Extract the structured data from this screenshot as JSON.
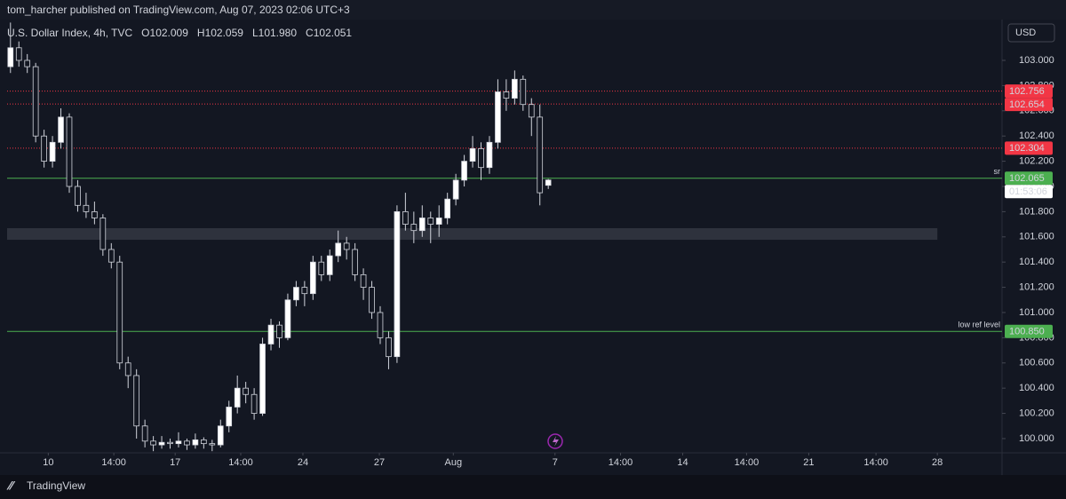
{
  "header": "tom_harcher published on TradingView.com, Aug 07, 2023 02:06 UTC+3",
  "footer": "TradingView",
  "chart_data": {
    "type": "candlestick",
    "legend": {
      "symbol": "U.S. Dollar Index, 4h, TVC",
      "ohlc": [
        {
          "key": "O",
          "label": "102.009"
        },
        {
          "key": "H",
          "label": "102.059"
        },
        {
          "key": "L",
          "label": "101.980"
        },
        {
          "key": "C",
          "label": "102.051"
        }
      ]
    },
    "currency": "USD",
    "up_color": "#ffffff",
    "down_color": "#131722",
    "wick_color": "#d1d4dc",
    "ohlc": [
      [
        102.95,
        103.3,
        102.9,
        103.1
      ],
      [
        103.1,
        103.15,
        102.95,
        103.0
      ],
      [
        103.0,
        103.05,
        102.9,
        102.95
      ],
      [
        102.95,
        102.98,
        102.35,
        102.4
      ],
      [
        102.4,
        102.45,
        102.15,
        102.2
      ],
      [
        102.2,
        102.4,
        102.15,
        102.35
      ],
      [
        102.35,
        102.62,
        102.3,
        102.55
      ],
      [
        102.55,
        102.58,
        101.95,
        102.0
      ],
      [
        102.0,
        102.05,
        101.8,
        101.85
      ],
      [
        101.85,
        101.95,
        101.75,
        101.8
      ],
      [
        101.8,
        101.88,
        101.7,
        101.75
      ],
      [
        101.75,
        101.78,
        101.45,
        101.5
      ],
      [
        101.5,
        101.55,
        101.35,
        101.4
      ],
      [
        101.4,
        101.45,
        100.55,
        100.6
      ],
      [
        100.6,
        100.65,
        100.4,
        100.5
      ],
      [
        100.5,
        100.55,
        100.0,
        100.1
      ],
      [
        100.1,
        100.15,
        99.93,
        99.98
      ],
      [
        99.98,
        100.02,
        99.9,
        99.95
      ],
      [
        99.95,
        100.02,
        99.92,
        99.97
      ],
      [
        99.97,
        100.0,
        99.92,
        99.96
      ],
      [
        99.96,
        100.05,
        99.93,
        99.98
      ],
      [
        99.98,
        100.0,
        99.91,
        99.95
      ],
      [
        99.95,
        100.04,
        99.92,
        99.99
      ],
      [
        99.99,
        100.01,
        99.92,
        99.96
      ],
      [
        99.96,
        99.99,
        99.9,
        99.95
      ],
      [
        99.95,
        100.15,
        99.93,
        100.1
      ],
      [
        100.1,
        100.3,
        100.05,
        100.25
      ],
      [
        100.25,
        100.5,
        100.2,
        100.4
      ],
      [
        100.4,
        100.45,
        100.28,
        100.35
      ],
      [
        100.35,
        100.4,
        100.15,
        100.2
      ],
      [
        100.2,
        100.8,
        100.18,
        100.75
      ],
      [
        100.75,
        100.95,
        100.7,
        100.9
      ],
      [
        100.9,
        100.93,
        100.72,
        100.8
      ],
      [
        100.8,
        101.15,
        100.78,
        101.1
      ],
      [
        101.1,
        101.25,
        101.05,
        101.2
      ],
      [
        101.2,
        101.25,
        101.05,
        101.15
      ],
      [
        101.15,
        101.45,
        101.1,
        101.4
      ],
      [
        101.4,
        101.45,
        101.25,
        101.3
      ],
      [
        101.3,
        101.5,
        101.25,
        101.45
      ],
      [
        101.45,
        101.65,
        101.4,
        101.55
      ],
      [
        101.55,
        101.6,
        101.42,
        101.5
      ],
      [
        101.5,
        101.55,
        101.25,
        101.3
      ],
      [
        101.3,
        101.35,
        101.1,
        101.2
      ],
      [
        101.2,
        101.25,
        100.95,
        101.0
      ],
      [
        101.0,
        101.05,
        100.75,
        100.8
      ],
      [
        100.8,
        100.85,
        100.55,
        100.65
      ],
      [
        100.65,
        101.85,
        100.6,
        101.8
      ],
      [
        101.8,
        101.95,
        101.65,
        101.7
      ],
      [
        101.7,
        101.8,
        101.55,
        101.65
      ],
      [
        101.65,
        101.85,
        101.6,
        101.75
      ],
      [
        101.75,
        101.8,
        101.55,
        101.7
      ],
      [
        101.7,
        101.85,
        101.6,
        101.75
      ],
      [
        101.75,
        101.95,
        101.7,
        101.9
      ],
      [
        101.9,
        102.1,
        101.85,
        102.05
      ],
      [
        102.05,
        102.25,
        102.0,
        102.2
      ],
      [
        102.2,
        102.4,
        102.15,
        102.3
      ],
      [
        102.3,
        102.35,
        102.05,
        102.15
      ],
      [
        102.15,
        102.4,
        102.1,
        102.35
      ],
      [
        102.35,
        102.85,
        102.3,
        102.75
      ],
      [
        102.75,
        102.85,
        102.6,
        102.7
      ],
      [
        102.7,
        102.92,
        102.65,
        102.85
      ],
      [
        102.85,
        102.88,
        102.6,
        102.65
      ],
      [
        102.65,
        102.7,
        102.4,
        102.55
      ],
      [
        102.55,
        102.65,
        101.85,
        101.95
      ],
      [
        102.009,
        102.059,
        101.98,
        102.051
      ]
    ],
    "xlim": [
      -0.4,
      118
    ],
    "xticks": [
      {
        "value": 4.5,
        "label": "10"
      },
      {
        "value": 12.3,
        "label": "14:00"
      },
      {
        "value": 19.6,
        "label": "17"
      },
      {
        "value": 27.4,
        "label": "14:00"
      },
      {
        "value": 34.8,
        "label": "24"
      },
      {
        "value": 43.9,
        "label": "27"
      },
      {
        "value": 52.7,
        "label": "Aug"
      },
      {
        "value": 64.8,
        "label": "7"
      },
      {
        "value": 72.6,
        "label": "14:00"
      },
      {
        "value": 80,
        "label": "14"
      },
      {
        "value": 87.6,
        "label": "14:00"
      },
      {
        "value": 95,
        "label": "21"
      },
      {
        "value": 103,
        "label": "14:00"
      },
      {
        "value": 110.3,
        "label": "28"
      }
    ],
    "ylim": [
      99.887,
      103.324
    ],
    "yticks": [
      {
        "value": 103,
        "label": "103.000"
      },
      {
        "value": 102.8,
        "label": "102.800"
      },
      {
        "value": 102.6,
        "label": "102.600"
      },
      {
        "value": 102.4,
        "label": "102.400"
      },
      {
        "value": 102.2,
        "label": "102.200"
      },
      {
        "value": 102,
        "label": "102.000"
      },
      {
        "value": 101.8,
        "label": "101.800"
      },
      {
        "value": 101.6,
        "label": "101.600"
      },
      {
        "value": 101.4,
        "label": "101.400"
      },
      {
        "value": 101.2,
        "label": "101.200"
      },
      {
        "value": 101,
        "label": "101.000"
      },
      {
        "value": 100.8,
        "label": "100.800"
      },
      {
        "value": 100.6,
        "label": "100.600"
      },
      {
        "value": 100.4,
        "label": "100.400"
      },
      {
        "value": 100.2,
        "label": "100.200"
      },
      {
        "value": 100,
        "label": "100.000"
      }
    ],
    "levels": [
      {
        "value": 102.756,
        "label": "102.756",
        "color": "#f23645",
        "style": "dotted"
      },
      {
        "value": 102.654,
        "label": "102.654",
        "color": "#f23645",
        "style": "dotted"
      },
      {
        "value": 102.304,
        "label": "102.304",
        "color": "#f23645",
        "style": "dotted"
      },
      {
        "value": 102.065,
        "label": "102.065",
        "color": "#4caf50",
        "style": "solid",
        "note": "sr"
      },
      {
        "value": 100.85,
        "label": "100.850",
        "color": "#4caf50",
        "style": "solid",
        "note": "low ref level"
      }
    ],
    "countdown": "01:53:06",
    "zone": {
      "low": 101.577,
      "high": 101.669,
      "x_end": 110.3,
      "color": "#363a45"
    }
  }
}
